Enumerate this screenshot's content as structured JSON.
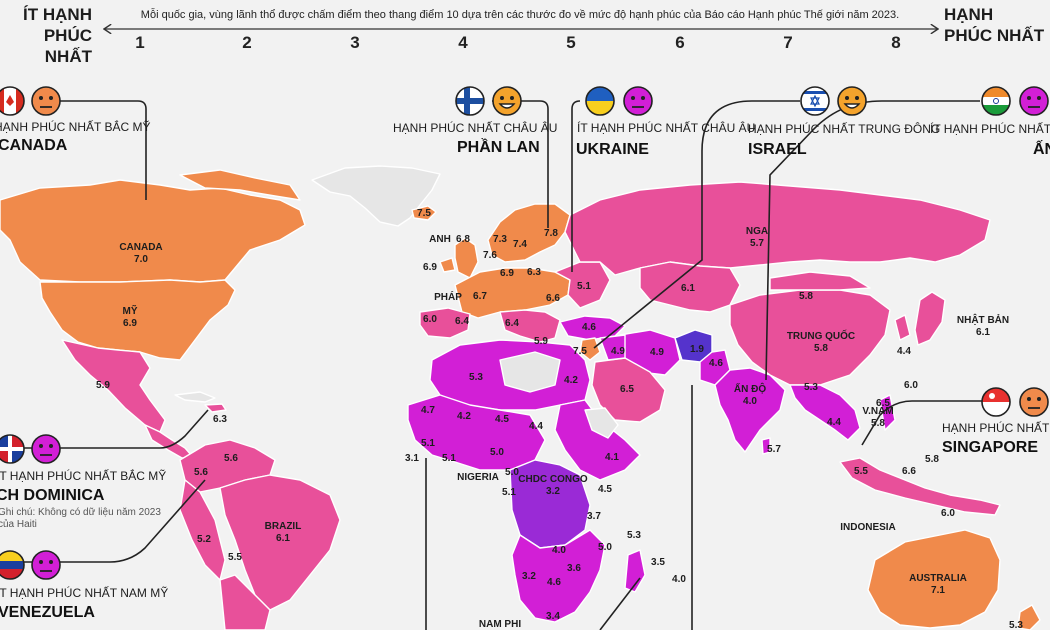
{
  "header": {
    "left_title_1": "ÍT HẠNH",
    "left_title_2": "PHÚC NHẤT",
    "right_title_1": "HẠNH",
    "right_title_2": "PHÚC NHẤT",
    "description": "Mỗi quốc gia, vùng lãnh thổ được chấm điểm theo thang điểm 10 dựa trên các thước đo về mức độ hạnh phúc của Báo cáo Hạnh phúc Thế giới năm 2023.",
    "scale": [
      "1",
      "2",
      "3",
      "4",
      "5",
      "6",
      "7",
      "8"
    ]
  },
  "color_scale": {
    "low": "#5533cc",
    "mid_low": "#9a2ad6",
    "mid": "#d21fd6",
    "mid_high": "#e8509a",
    "high": "#f08a4b",
    "no_data": "#e6e6e6"
  },
  "callouts": [
    {
      "id": "canada",
      "label": "HẠNH PHÚC NHẤT BẮC MỸ",
      "name": "CANADA",
      "flag": "canada-flag",
      "face": "neutral-face"
    },
    {
      "id": "finland",
      "label": "HẠNH PHÚC NHẤT CHÂU ÂU",
      "name": "PHẦN LAN",
      "flag": "finland-flag",
      "face": "grin-face"
    },
    {
      "id": "ukraine",
      "label": "ÍT HẠNH PHÚC NHẤT CHÂU ÂU",
      "name": "UKRAINE",
      "flag": "ukraine-flag",
      "face": "neutral-face"
    },
    {
      "id": "israel",
      "label": "HẠNH PHÚC NHẤT TRUNG ĐÔNG",
      "name": "ISRAEL",
      "flag": "israel-flag",
      "face": "grin-face"
    },
    {
      "id": "india",
      "label": "ÍT HẠNH PHÚC NHẤT Đ",
      "name": "ẤN",
      "flag": "india-flag",
      "face": "neutral-face"
    },
    {
      "id": "dominica",
      "label": "ÍT HẠNH PHÚC NHẤT BẮC MỸ",
      "name": "CH DOMINICA",
      "flag": "dominican-flag",
      "face": "neutral-face",
      "note_1": "Ghi chú: Không có dữ liệu năm 2023",
      "note_2": "của Haiti"
    },
    {
      "id": "venezuela",
      "label": "ÍT HẠNH PHÚC NHẤT NAM MỸ",
      "name": "VENEZUELA",
      "flag": "venezuela-flag",
      "face": "neutral-face"
    },
    {
      "id": "singapore",
      "label": "HẠNH PHÚC NHẤT Đ",
      "name": "SINGAPORE",
      "flag": "singapore-flag",
      "face": "neutral-face"
    }
  ],
  "region_labels": [
    {
      "name": "CANADA",
      "score": "7.0"
    },
    {
      "name": "MỸ",
      "score": "6.9"
    },
    {
      "name": "BRAZIL",
      "score": "6.1"
    },
    {
      "name": "NGA",
      "score": "5.7"
    },
    {
      "name": "TRUNG QUỐC",
      "score": "5.8"
    },
    {
      "name": "ẤN ĐỘ",
      "score": "4.0"
    },
    {
      "name": "CHDC CONGO",
      "score": "3.2"
    },
    {
      "name": "AUSTRALIA",
      "score": "7.1"
    },
    {
      "name": "NHẬT BẢN",
      "score": "6.1"
    },
    {
      "name": "V.NAM",
      "score": "5.8"
    }
  ],
  "place_labels": [
    "ANH",
    "PHÁP",
    "NIGERIA",
    "INDONESIA",
    "NAM PHI"
  ],
  "scores": [
    "7.5",
    "6.8",
    "6.9",
    "7.3",
    "7.4",
    "7.8",
    "7.6",
    "6.9",
    "6.3",
    "6.7",
    "6.6",
    "5.1",
    "6.0",
    "6.4",
    "6.4",
    "5.9",
    "7.5",
    "4.6",
    "4.9",
    "4.9",
    "1.9",
    "4.6",
    "6.1",
    "5.8",
    "5.3",
    "4.2",
    "6.5",
    "4.7",
    "4.2",
    "4.5",
    "4.4",
    "5.1",
    "5.1",
    "5.0",
    "3.1",
    "5.0",
    "5.1",
    "4.1",
    "4.5",
    "3.7",
    "4.0",
    "5.0",
    "3.6",
    "3.2",
    "4.6",
    "3.4",
    "5.3",
    "3.5",
    "4.0",
    "5.9",
    "6.3",
    "5.6",
    "5.6",
    "5.2",
    "5.5",
    "5.7",
    "4.4",
    "6.0",
    "6.5",
    "5.3",
    "4.4",
    "5.8",
    "5.5",
    "6.6",
    "6.0",
    "5.3",
    "7.1"
  ]
}
